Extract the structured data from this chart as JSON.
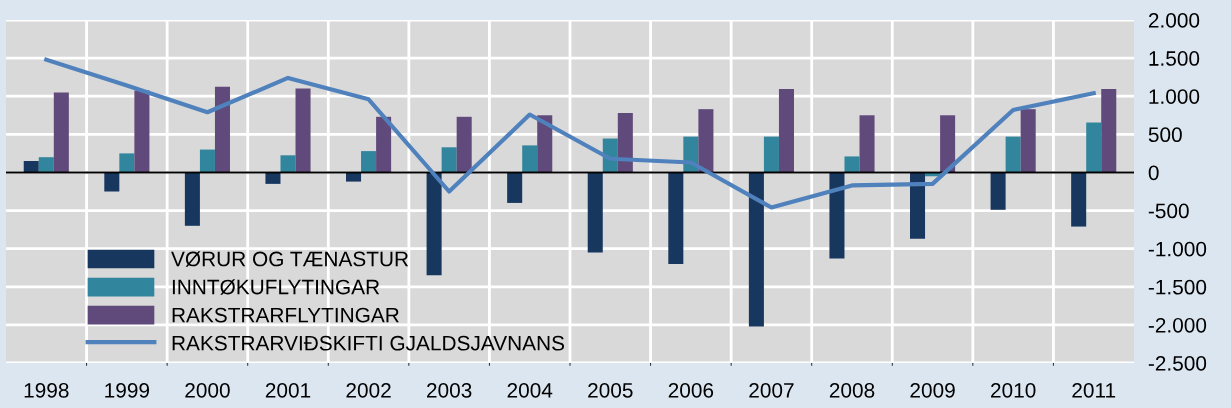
{
  "chart_data": {
    "type": "bar",
    "categories": [
      "1998",
      "1999",
      "2000",
      "2001",
      "2002",
      "2003",
      "2004",
      "2005",
      "2006",
      "2007",
      "2008",
      "2009",
      "2010",
      "2011"
    ],
    "series": [
      {
        "name": "VØRUR OG TÆNASTUR",
        "color": "#17375e",
        "values": [
          150,
          -250,
          -700,
          -150,
          -120,
          -1350,
          -400,
          -1050,
          -1200,
          -2020,
          -1130,
          -870,
          -490,
          -710
        ]
      },
      {
        "name": "INNTØKUFLYTINGAR",
        "color": "#31859c",
        "values": [
          200,
          250,
          300,
          225,
          280,
          330,
          355,
          445,
          470,
          470,
          210,
          -50,
          470,
          655
        ]
      },
      {
        "name": "RAKSTRARFLYTINGAR",
        "color": "#604a7b",
        "values": [
          1050,
          1075,
          1125,
          1100,
          730,
          730,
          750,
          780,
          830,
          1095,
          750,
          750,
          830,
          1095
        ]
      },
      {
        "name": "RAKSTRARVIÐSKIFTI GJALDSJAVNANS",
        "type": "line",
        "color": "#4f81bd",
        "marker": "none",
        "values": [
          1480,
          1140,
          790,
          1240,
          960,
          -250,
          760,
          180,
          130,
          -460,
          -170,
          -150,
          820,
          1040
        ]
      }
    ],
    "ylim": [
      -2500,
      2000
    ],
    "yticks": [
      {
        "value": -2500,
        "label": "-2.500"
      },
      {
        "value": -2000,
        "label": "-2.000"
      },
      {
        "value": -1500,
        "label": "-1.500"
      },
      {
        "value": -1000,
        "label": "-1.000"
      },
      {
        "value": -500,
        "label": "-500"
      },
      0,
      500,
      {
        "value": 1000,
        "label": "1.000"
      },
      {
        "value": 1500,
        "label": "1.500"
      },
      {
        "value": 2000,
        "label": "2.000"
      }
    ],
    "grid": true,
    "legend": "bottom left"
  }
}
